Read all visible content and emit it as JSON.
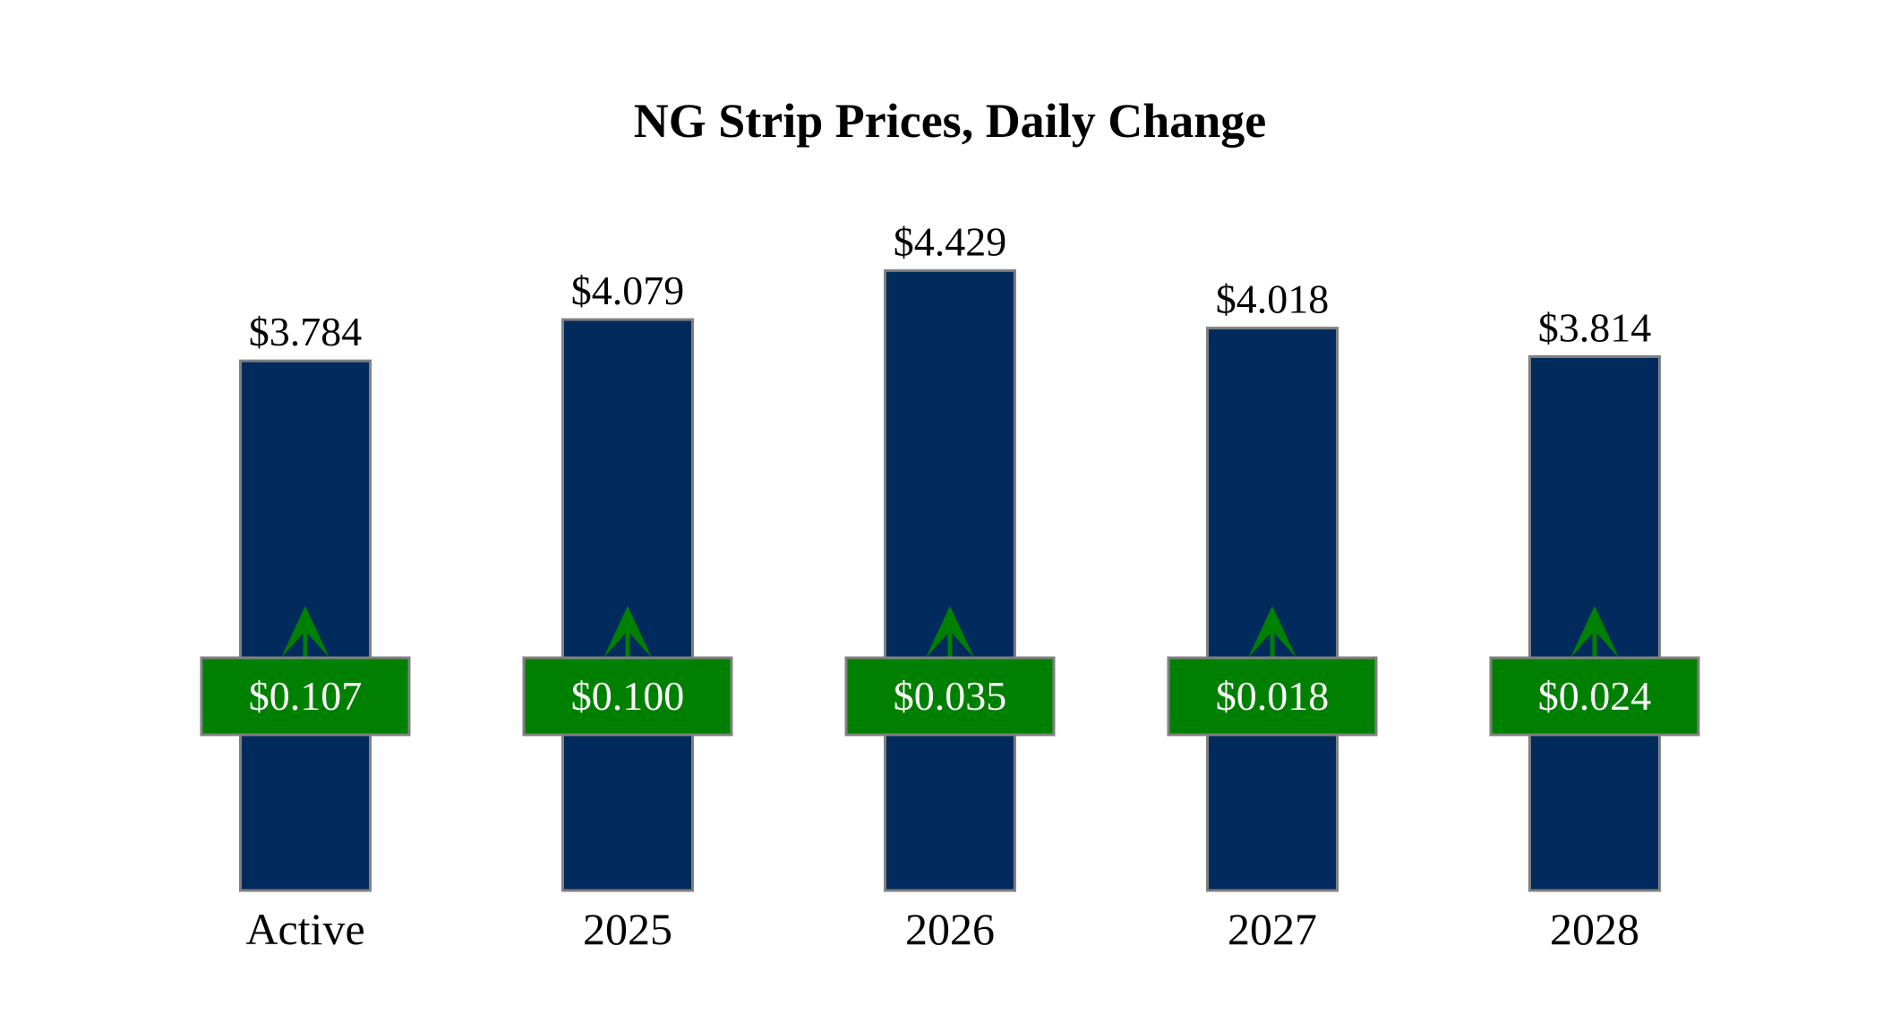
{
  "chart_data": {
    "type": "bar",
    "title": "NG Strip Prices, Daily Change",
    "xlabel": "",
    "ylabel": "",
    "ylim": [
      0,
      4.6
    ],
    "grid": false,
    "categories": [
      "Active",
      "2025",
      "2026",
      "2027",
      "2028"
    ],
    "values": [
      3.784,
      4.079,
      4.429,
      4.018,
      3.814
    ],
    "value_labels": [
      "$3.784",
      "$4.079",
      "$4.429",
      "$4.018",
      "$3.814"
    ],
    "changes": [
      0.107,
      0.1,
      0.035,
      0.018,
      0.024
    ],
    "change_labels": [
      "$0.107",
      "$0.100",
      "$0.035",
      "$0.018",
      "$0.024"
    ],
    "change_direction": [
      "up",
      "up",
      "up",
      "up",
      "up"
    ],
    "colors": {
      "bar": "#002B5C",
      "bar_border": "#808080",
      "change_box": "#008000",
      "arrow": "#008000",
      "change_text": "#ffffff"
    }
  }
}
